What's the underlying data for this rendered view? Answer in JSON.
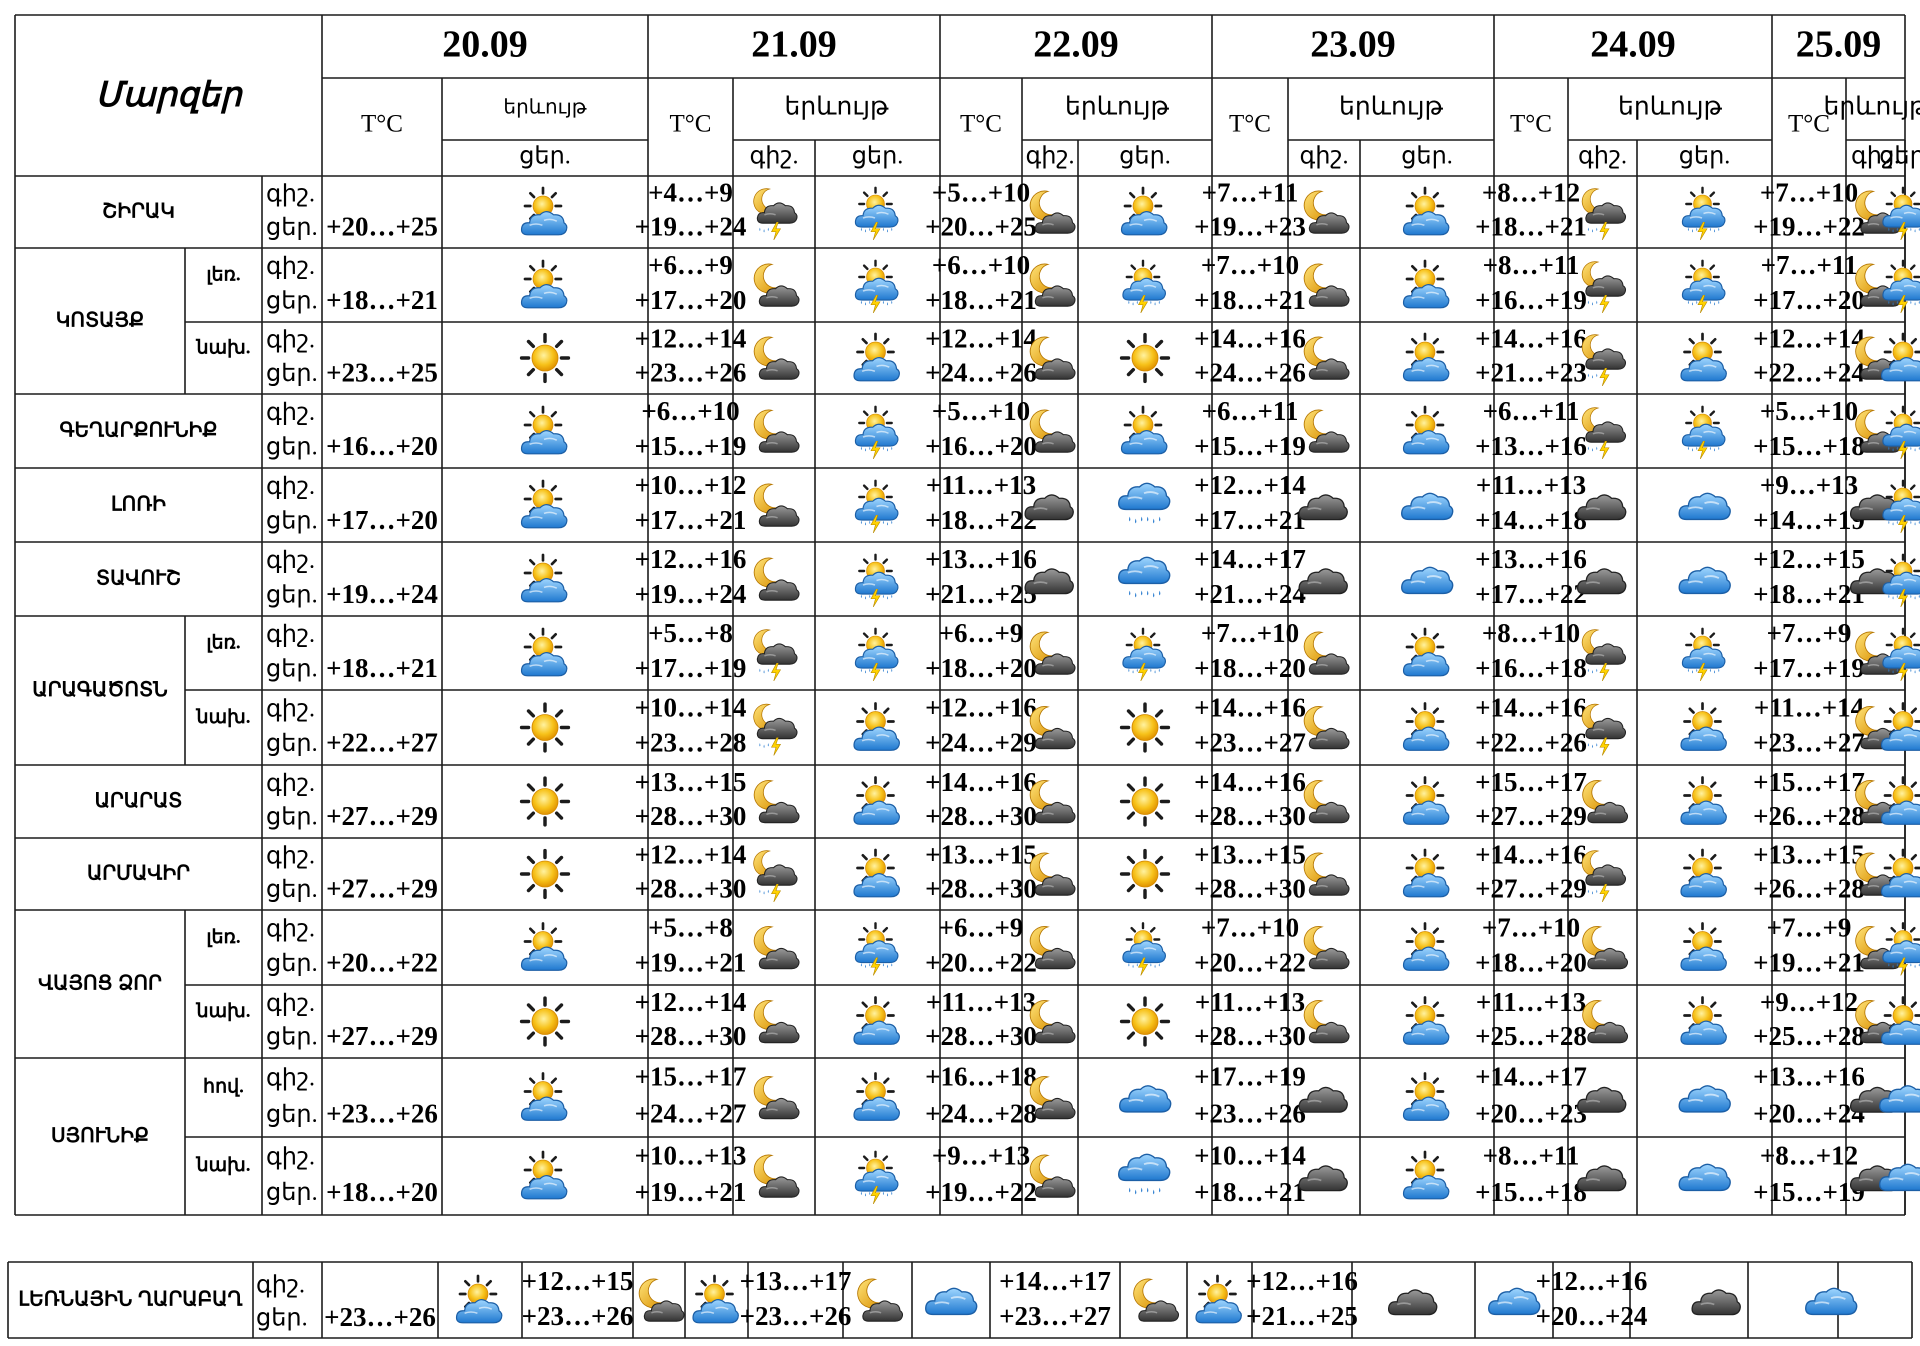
{
  "header": {
    "regions_title": "Մարզեր",
    "temp_label": "T°C",
    "phenomenon_label": "երևույթ",
    "night_label": "գիշ.",
    "day_label": "ցեր."
  },
  "dates": [
    "20.09",
    "21.09",
    "22.09",
    "23.09",
    "24.09",
    "25.09"
  ],
  "icon_colors": {
    "sun": "#f5b800",
    "cloud_blue": "#3f9be0",
    "cloud_gray": "#5a5a5a",
    "moon": "#e8a200",
    "rain": "#2f7fd0"
  },
  "regions": [
    {
      "name": "ՇԻՐԱԿ",
      "rows": [
        {
          "sub": "",
          "night_label": "գիշ.",
          "day_label": "ցեր.",
          "d0": {
            "day": "+20…+25",
            "icon": "sun-cloud-icon"
          },
          "days": [
            {
              "night": "+4…+9",
              "day": "+19…+24",
              "icon_night": "moon-storm-cloud-icon",
              "icon_day": "sun-storm-cloud-icon"
            },
            {
              "night": "+5…+10",
              "day": "+20…+25",
              "icon_night": "moon-cloud-icon",
              "icon_day": "sun-cloud-icon"
            },
            {
              "night": "+7…+11",
              "day": "+19…+23",
              "icon_night": "moon-cloud-icon",
              "icon_day": "sun-cloud-icon"
            },
            {
              "night": "+8…+12",
              "day": "+18…+21",
              "icon_night": "moon-storm-cloud-icon",
              "icon_day": "sun-storm-cloud-icon"
            },
            {
              "night": "+7…+10",
              "day": "+19…+22",
              "icon_night": "moon-cloud-icon",
              "icon_day": "sun-storm-cloud-icon"
            }
          ]
        }
      ]
    },
    {
      "name": "ԿՈՏԱՅՔ",
      "rows": [
        {
          "sub": "լեռ.",
          "night_label": "գիշ.",
          "day_label": "ցեր.",
          "d0": {
            "day": "+18…+21",
            "icon": "sun-cloud-icon"
          },
          "days": [
            {
              "night": "+6…+9",
              "day": "+17…+20",
              "icon_night": "moon-cloud-icon",
              "icon_day": "sun-storm-cloud-icon"
            },
            {
              "night": "+6…+10",
              "day": "+18…+21",
              "icon_night": "moon-cloud-icon",
              "icon_day": "sun-storm-cloud-icon"
            },
            {
              "night": "+7…+10",
              "day": "+18…+21",
              "icon_night": "moon-cloud-icon",
              "icon_day": "sun-cloud-icon"
            },
            {
              "night": "+8…+11",
              "day": "+16…+19",
              "icon_night": "moon-storm-cloud-icon",
              "icon_day": "sun-storm-cloud-icon"
            },
            {
              "night": "+7…+11",
              "day": "+17…+20",
              "icon_night": "moon-cloud-icon",
              "icon_day": "sun-storm-cloud-icon"
            }
          ]
        },
        {
          "sub": "նախ.",
          "night_label": "գիշ.",
          "day_label": "ցեր.",
          "d0": {
            "day": "+23…+25",
            "icon": "sun-icon"
          },
          "days": [
            {
              "night": "+12…+14",
              "day": "+23…+26",
              "icon_night": "moon-cloud-icon",
              "icon_day": "sun-cloud-icon"
            },
            {
              "night": "+12…+14",
              "day": "+24…+26",
              "icon_night": "moon-cloud-icon",
              "icon_day": "sun-icon"
            },
            {
              "night": "+14…+16",
              "day": "+24…+26",
              "icon_night": "moon-cloud-icon",
              "icon_day": "sun-cloud-icon"
            },
            {
              "night": "+14…+16",
              "day": "+21…+23",
              "icon_night": "moon-storm-cloud-icon",
              "icon_day": "sun-cloud-icon"
            },
            {
              "night": "+12…+14",
              "day": "+22…+24",
              "icon_night": "moon-cloud-icon",
              "icon_day": "sun-cloud-icon"
            }
          ]
        }
      ]
    },
    {
      "name": "ԳԵՂԱՐՔՈՒՆԻՔ",
      "rows": [
        {
          "sub": "",
          "night_label": "գիշ.",
          "day_label": "ցեր.",
          "d0": {
            "day": "+16…+20",
            "icon": "sun-cloud-icon"
          },
          "days": [
            {
              "night": "+6…+10",
              "day": "+15…+19",
              "icon_night": "moon-cloud-icon",
              "icon_day": "sun-storm-cloud-icon"
            },
            {
              "night": "+5…+10",
              "day": "+16…+20",
              "icon_night": "moon-cloud-icon",
              "icon_day": "sun-cloud-icon"
            },
            {
              "night": "+6…+11",
              "day": "+15…+19",
              "icon_night": "moon-cloud-icon",
              "icon_day": "sun-cloud-icon"
            },
            {
              "night": "+6…+11",
              "day": "+13…+16",
              "icon_night": "moon-storm-cloud-icon",
              "icon_day": "sun-storm-cloud-icon"
            },
            {
              "night": "+5…+10",
              "day": "+15…+18",
              "icon_night": "moon-cloud-icon",
              "icon_day": "sun-storm-cloud-icon"
            }
          ]
        }
      ]
    },
    {
      "name": "ԼՈՌԻ",
      "rows": [
        {
          "sub": "",
          "night_label": "գիշ.",
          "day_label": "ցեր.",
          "d0": {
            "day": "+17…+20",
            "icon": "sun-cloud-icon"
          },
          "days": [
            {
              "night": "+10…+12",
              "day": "+17…+21",
              "icon_night": "moon-cloud-icon",
              "icon_day": "sun-storm-cloud-icon"
            },
            {
              "night": "+11…+13",
              "day": "+18…+22",
              "icon_night": "dark-cloud-icon",
              "icon_day": "rain-cloud-icon"
            },
            {
              "night": "+12…+14",
              "day": "+17…+21",
              "icon_night": "dark-cloud-icon",
              "icon_day": "blue-cloud-icon"
            },
            {
              "night": "+11…+13",
              "day": "+14…+18",
              "icon_night": "dark-cloud-icon",
              "icon_day": "blue-cloud-icon"
            },
            {
              "night": "+9…+13",
              "day": "+14…+19",
              "icon_night": "dark-cloud-icon",
              "icon_day": "sun-storm-cloud-icon"
            }
          ]
        }
      ]
    },
    {
      "name": "ՏԱՎՈՒՇ",
      "rows": [
        {
          "sub": "",
          "night_label": "գիշ.",
          "day_label": "ցեր.",
          "d0": {
            "day": "+19…+24",
            "icon": "sun-cloud-icon"
          },
          "days": [
            {
              "night": "+12…+16",
              "day": "+19…+24",
              "icon_night": "moon-cloud-icon",
              "icon_day": "sun-storm-cloud-icon"
            },
            {
              "night": "+13…+16",
              "day": "+21…+25",
              "icon_night": "dark-cloud-icon",
              "icon_day": "rain-cloud-icon"
            },
            {
              "night": "+14…+17",
              "day": "+21…+24",
              "icon_night": "dark-cloud-icon",
              "icon_day": "blue-cloud-icon"
            },
            {
              "night": "+13…+16",
              "day": "+17…+22",
              "icon_night": "dark-cloud-icon",
              "icon_day": "blue-cloud-icon"
            },
            {
              "night": "+12…+15",
              "day": "+18…+21",
              "icon_night": "dark-cloud-icon",
              "icon_day": "sun-storm-cloud-icon"
            }
          ]
        }
      ]
    },
    {
      "name": "ԱՐԱԳԱԾՈՏՆ",
      "rows": [
        {
          "sub": "լեռ.",
          "night_label": "գիշ.",
          "day_label": "ցեր.",
          "d0": {
            "day": "+18…+21",
            "icon": "sun-cloud-icon"
          },
          "days": [
            {
              "night": "+5…+8",
              "day": "+17…+19",
              "icon_night": "moon-storm-cloud-icon",
              "icon_day": "sun-storm-cloud-icon"
            },
            {
              "night": "+6…+9",
              "day": "+18…+20",
              "icon_night": "moon-cloud-icon",
              "icon_day": "sun-storm-cloud-icon"
            },
            {
              "night": "+7…+10",
              "day": "+18…+20",
              "icon_night": "moon-cloud-icon",
              "icon_day": "sun-cloud-icon"
            },
            {
              "night": "+8…+10",
              "day": "+16…+18",
              "icon_night": "moon-storm-cloud-icon",
              "icon_day": "sun-storm-cloud-icon"
            },
            {
              "night": "+7…+9",
              "day": "+17…+19",
              "icon_night": "moon-cloud-icon",
              "icon_day": "sun-storm-cloud-icon"
            }
          ]
        },
        {
          "sub": "նախ.",
          "night_label": "գիշ.",
          "day_label": "ցեր.",
          "d0": {
            "day": "+22…+27",
            "icon": "sun-icon"
          },
          "days": [
            {
              "night": "+10…+14",
              "day": "+23…+28",
              "icon_night": "moon-storm-cloud-icon",
              "icon_day": "sun-cloud-icon"
            },
            {
              "night": "+12…+16",
              "day": "+24…+29",
              "icon_night": "moon-cloud-icon",
              "icon_day": "sun-icon"
            },
            {
              "night": "+14…+16",
              "day": "+23…+27",
              "icon_night": "moon-cloud-icon",
              "icon_day": "sun-cloud-icon"
            },
            {
              "night": "+14…+16",
              "day": "+22…+26",
              "icon_night": "moon-storm-cloud-icon",
              "icon_day": "sun-cloud-icon"
            },
            {
              "night": "+11…+14",
              "day": "+23…+27",
              "icon_night": "moon-cloud-icon",
              "icon_day": "sun-cloud-icon"
            }
          ]
        }
      ]
    },
    {
      "name": "ԱՐԱՐԱՏ",
      "rows": [
        {
          "sub": "",
          "night_label": "գիշ.",
          "day_label": "ցեր.",
          "d0": {
            "day": "+27…+29",
            "icon": "sun-icon"
          },
          "days": [
            {
              "night": "+13…+15",
              "day": "+28…+30",
              "icon_night": "moon-cloud-icon",
              "icon_day": "sun-cloud-icon"
            },
            {
              "night": "+14…+16",
              "day": "+28…+30",
              "icon_night": "moon-cloud-icon",
              "icon_day": "sun-icon"
            },
            {
              "night": "+14…+16",
              "day": "+28…+30",
              "icon_night": "moon-cloud-icon",
              "icon_day": "sun-cloud-icon"
            },
            {
              "night": "+15…+17",
              "day": "+27…+29",
              "icon_night": "moon-cloud-icon",
              "icon_day": "sun-cloud-icon"
            },
            {
              "night": "+15…+17",
              "day": "+26…+28",
              "icon_night": "moon-cloud-icon",
              "icon_day": "sun-cloud-icon"
            }
          ]
        }
      ]
    },
    {
      "name": "ԱՐՄԱՎԻՐ",
      "rows": [
        {
          "sub": "",
          "night_label": "գիշ.",
          "day_label": "ցեր.",
          "d0": {
            "day": "+27…+29",
            "icon": "sun-icon"
          },
          "days": [
            {
              "night": "+12…+14",
              "day": "+28…+30",
              "icon_night": "moon-storm-cloud-icon",
              "icon_day": "sun-cloud-icon"
            },
            {
              "night": "+13…+15",
              "day": "+28…+30",
              "icon_night": "moon-cloud-icon",
              "icon_day": "sun-icon"
            },
            {
              "night": "+13…+15",
              "day": "+28…+30",
              "icon_night": "moon-cloud-icon",
              "icon_day": "sun-cloud-icon"
            },
            {
              "night": "+14…+16",
              "day": "+27…+29",
              "icon_night": "moon-storm-cloud-icon",
              "icon_day": "sun-cloud-icon"
            },
            {
              "night": "+13…+15",
              "day": "+26…+28",
              "icon_night": "moon-cloud-icon",
              "icon_day": "sun-cloud-icon"
            }
          ]
        }
      ]
    },
    {
      "name": "ՎԱՅՈՑ ՁՈՐ",
      "rows": [
        {
          "sub": "լեռ.",
          "night_label": "գիշ.",
          "day_label": "ցեր.",
          "d0": {
            "day": "+20…+22",
            "icon": "sun-cloud-icon"
          },
          "days": [
            {
              "night": "+5…+8",
              "day": "+19…+21",
              "icon_night": "moon-cloud-icon",
              "icon_day": "sun-storm-cloud-icon"
            },
            {
              "night": "+6…+9",
              "day": "+20…+22",
              "icon_night": "moon-cloud-icon",
              "icon_day": "sun-storm-cloud-icon"
            },
            {
              "night": "+7…+10",
              "day": "+20…+22",
              "icon_night": "moon-cloud-icon",
              "icon_day": "sun-cloud-icon"
            },
            {
              "night": "+7…+10",
              "day": "+18…+20",
              "icon_night": "moon-cloud-icon",
              "icon_day": "sun-cloud-icon"
            },
            {
              "night": "+7…+9",
              "day": "+19…+21",
              "icon_night": "moon-cloud-icon",
              "icon_day": "sun-storm-cloud-icon"
            }
          ]
        },
        {
          "sub": "նախ.",
          "night_label": "գիշ.",
          "day_label": "ցեր.",
          "d0": {
            "day": "+27…+29",
            "icon": "sun-icon"
          },
          "days": [
            {
              "night": "+12…+14",
              "day": "+28…+30",
              "icon_night": "moon-cloud-icon",
              "icon_day": "sun-cloud-icon"
            },
            {
              "night": "+11…+13",
              "day": "+28…+30",
              "icon_night": "moon-cloud-icon",
              "icon_day": "sun-icon"
            },
            {
              "night": "+11…+13",
              "day": "+28…+30",
              "icon_night": "moon-cloud-icon",
              "icon_day": "sun-cloud-icon"
            },
            {
              "night": "+11…+13",
              "day": "+25…+28",
              "icon_night": "moon-cloud-icon",
              "icon_day": "sun-cloud-icon"
            },
            {
              "night": "+9…+12",
              "day": "+25…+28",
              "icon_night": "moon-cloud-icon",
              "icon_day": "sun-cloud-icon"
            }
          ]
        }
      ]
    },
    {
      "name": "ՍՅՈՒՆԻՔ",
      "rows": [
        {
          "sub": "հով.",
          "night_label": "գիշ.",
          "day_label": "ցեր.",
          "d0": {
            "day": "+23…+26",
            "icon": "sun-cloud-icon"
          },
          "days": [
            {
              "night": "+15…+17",
              "day": "+24…+27",
              "icon_night": "moon-cloud-icon",
              "icon_day": "sun-cloud-icon"
            },
            {
              "night": "+16…+18",
              "day": "+24…+28",
              "icon_night": "moon-cloud-icon",
              "icon_day": "blue-cloud-icon"
            },
            {
              "night": "+17…+19",
              "day": "+23…+26",
              "icon_night": "dark-cloud-icon",
              "icon_day": "sun-cloud-icon"
            },
            {
              "night": "+14…+17",
              "day": "+20…+23",
              "icon_night": "dark-cloud-icon",
              "icon_day": "blue-cloud-icon"
            },
            {
              "night": "+13…+16",
              "day": "+20…+24",
              "icon_night": "dark-cloud-icon",
              "icon_day": "blue-cloud-icon"
            }
          ]
        },
        {
          "sub": "նախ.",
          "night_label": "գիշ.",
          "day_label": "ցեր.",
          "d0": {
            "day": "+18…+20",
            "icon": "sun-cloud-icon"
          },
          "days": [
            {
              "night": "+10…+13",
              "day": "+19…+21",
              "icon_night": "moon-cloud-icon",
              "icon_day": "sun-storm-cloud-icon"
            },
            {
              "night": "+9…+13",
              "day": "+19…+22",
              "icon_night": "moon-cloud-icon",
              "icon_day": "rain-cloud-icon"
            },
            {
              "night": "+10…+14",
              "day": "+18…+21",
              "icon_night": "dark-cloud-icon",
              "icon_day": "sun-cloud-icon"
            },
            {
              "night": "+8…+11",
              "day": "+15…+18",
              "icon_night": "dark-cloud-icon",
              "icon_day": "blue-cloud-icon"
            },
            {
              "night": "+8…+12",
              "day": "+15…+19",
              "icon_night": "dark-cloud-icon",
              "icon_day": "blue-cloud-icon"
            }
          ]
        }
      ]
    }
  ],
  "karabakh": {
    "name": "ԼԵՌՆԱՅԻՆ ՂԱՐԱԲԱՂ",
    "night_label": "գիշ.",
    "day_label": "ցեր.",
    "d0": {
      "day": "+23…+26",
      "icon": "sun-cloud-icon"
    },
    "days": [
      {
        "night": "+12…+15",
        "day": "+23…+26",
        "icon_night": "moon-cloud-icon",
        "icon_day": "sun-cloud-icon"
      },
      {
        "night": "+13…+17",
        "day": "+23…+26",
        "icon_night": "moon-cloud-icon",
        "icon_day": "blue-cloud-icon"
      },
      {
        "night": "+14…+17",
        "day": "+23…+27",
        "icon_night": "moon-cloud-icon",
        "icon_day": "sun-cloud-icon"
      },
      {
        "night": "+12…+16",
        "day": "+21…+25",
        "icon_night": "dark-cloud-icon",
        "icon_day": "blue-cloud-icon"
      },
      {
        "night": "+12…+16",
        "day": "+20…+24",
        "icon_night": "dark-cloud-icon",
        "icon_day": "blue-cloud-icon"
      }
    ]
  }
}
